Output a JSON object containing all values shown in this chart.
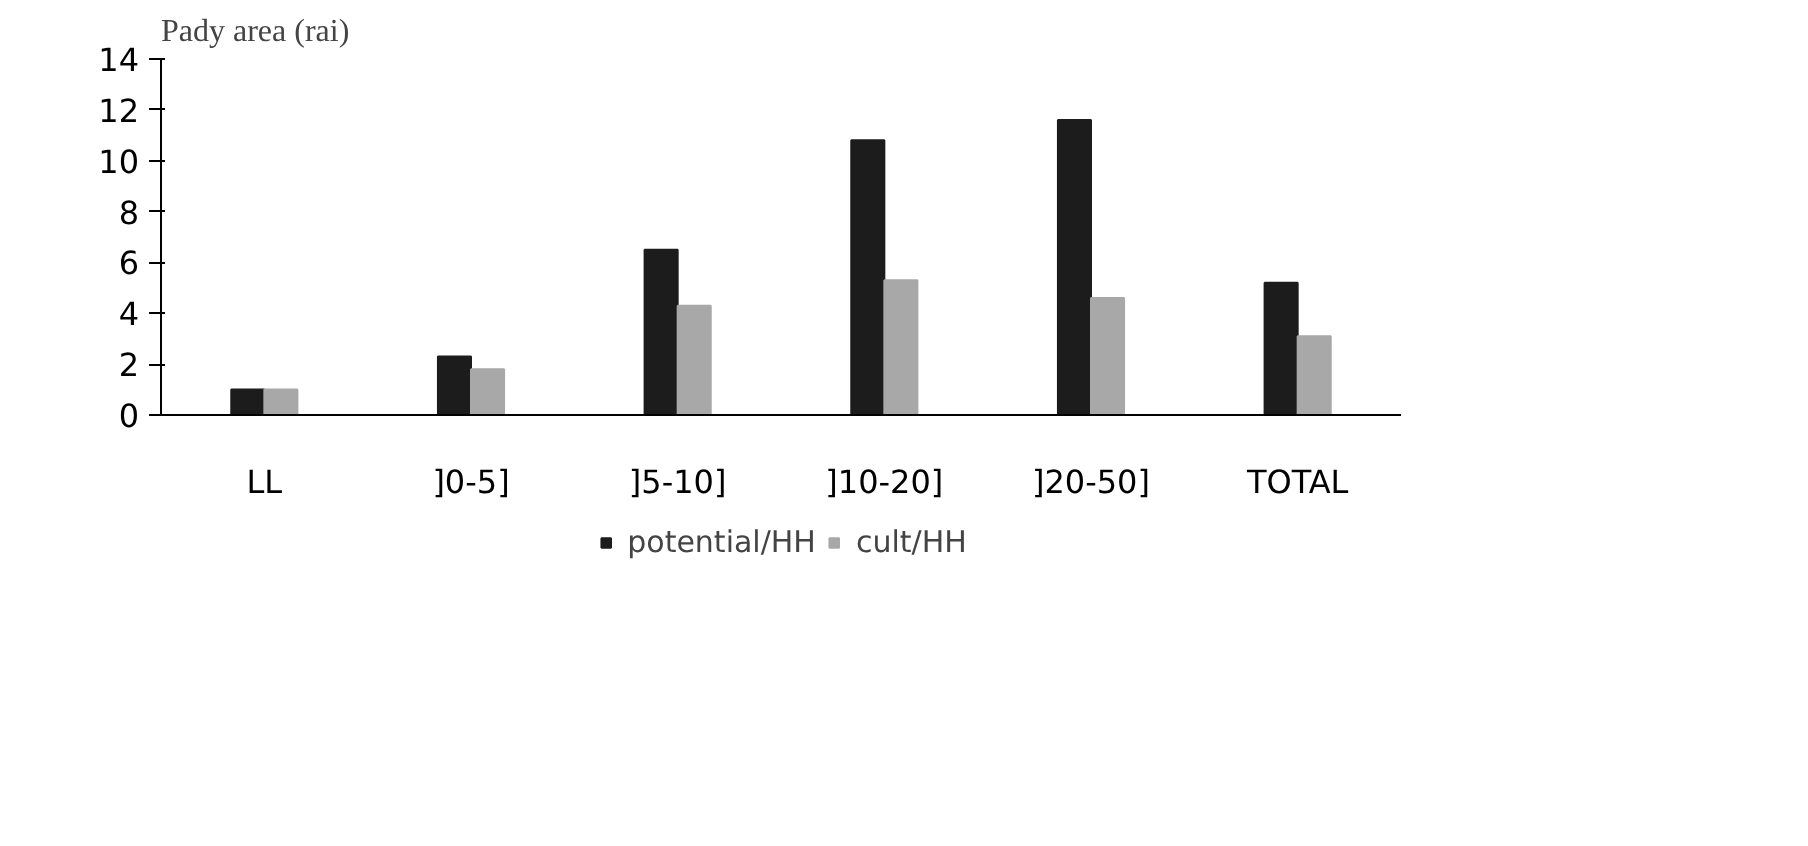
{
  "chart_data": {
    "type": "bar",
    "title": "Pady area (rai)",
    "categories": [
      "LL",
      "]0-5]",
      "]5-10]",
      "]10-20]",
      "]20-50]",
      "TOTAL"
    ],
    "series": [
      {
        "name": "potential/HH",
        "color": "#1c1c1c",
        "values": [
          1.0,
          2.3,
          6.5,
          10.8,
          11.6,
          5.2
        ]
      },
      {
        "name": "cult/HH",
        "color": "#a8a8a8",
        "values": [
          1.0,
          1.8,
          4.3,
          5.3,
          4.6,
          3.1
        ]
      }
    ],
    "ylim": [
      0,
      14
    ],
    "yticks": [
      0,
      2,
      4,
      6,
      8,
      10,
      12,
      14
    ],
    "grid": false,
    "legend": "bottom"
  }
}
